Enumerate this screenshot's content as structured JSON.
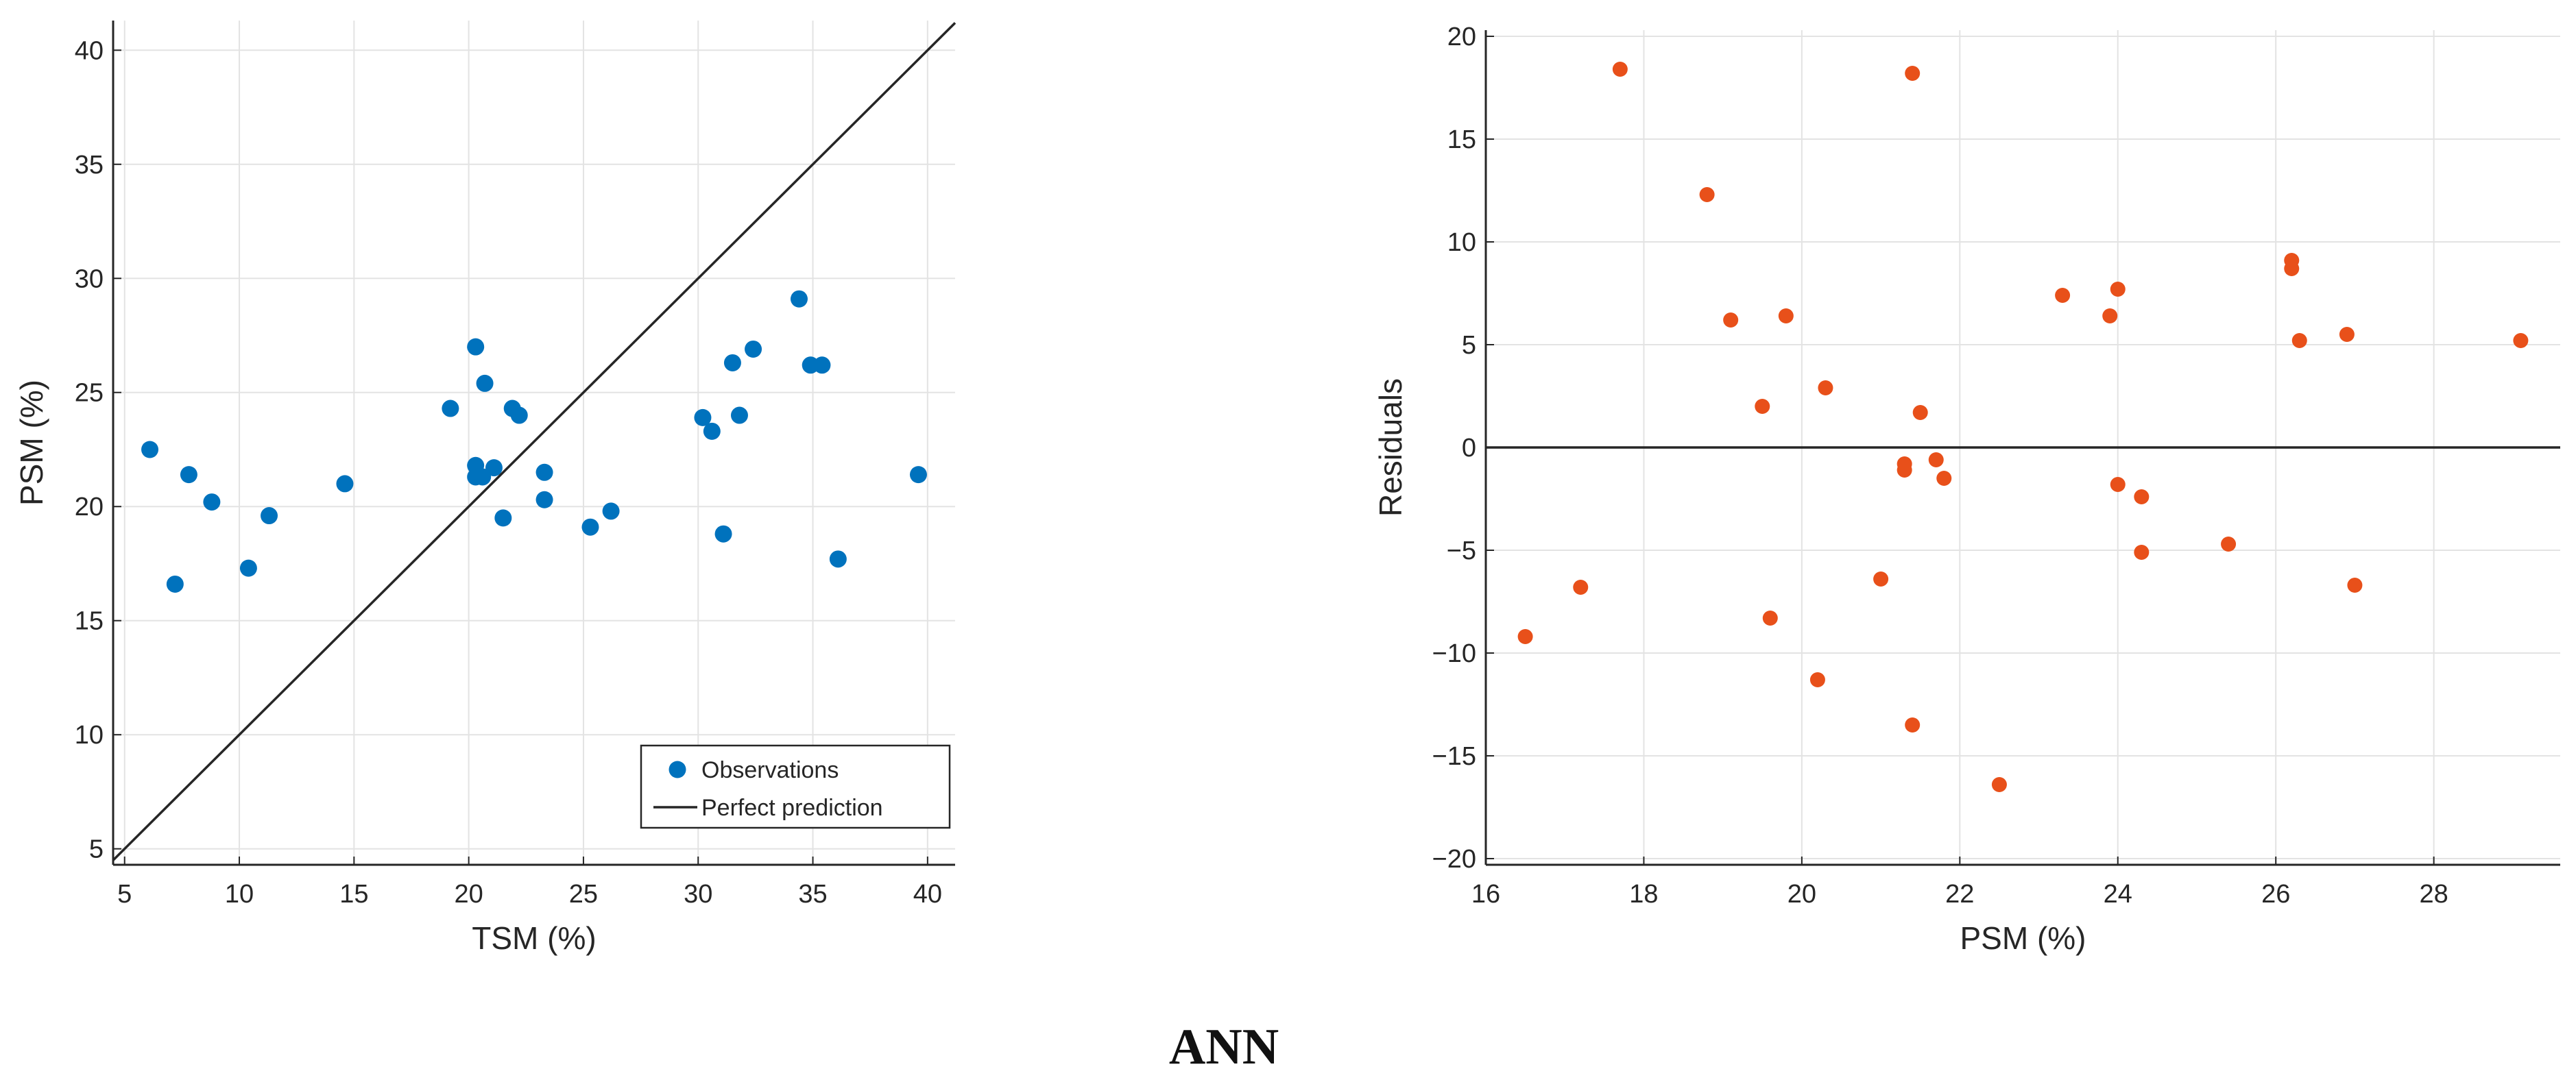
{
  "caption": "ANN",
  "colors": {
    "observations": "#0072BD",
    "residuals": "#E8501A",
    "line": "#262626",
    "grid": "#e3e3e3",
    "axis": "#262626"
  },
  "chart_data": [
    {
      "type": "scatter",
      "xlabel": "TSM (%)",
      "ylabel": "PSM (%)",
      "xlim": [
        4.5,
        41.2
      ],
      "ylim": [
        4.3,
        41.3
      ],
      "xticks": [
        5,
        10,
        15,
        20,
        25,
        30,
        35,
        40
      ],
      "yticks": [
        5,
        10,
        15,
        20,
        25,
        30,
        35,
        40
      ],
      "grid": true,
      "legend_position": "bottom-right",
      "legend": [
        "Observations",
        "Perfect prediction"
      ],
      "series": [
        {
          "name": "Observations",
          "kind": "points",
          "points": [
            [
              6.1,
              22.5
            ],
            [
              7.2,
              16.6
            ],
            [
              7.8,
              21.4
            ],
            [
              8.8,
              20.2
            ],
            [
              10.4,
              17.3
            ],
            [
              11.3,
              19.6
            ],
            [
              14.6,
              21.0
            ],
            [
              19.2,
              24.3
            ],
            [
              20.3,
              27.0
            ],
            [
              20.3,
              21.8
            ],
            [
              20.3,
              21.3
            ],
            [
              20.6,
              21.3
            ],
            [
              20.7,
              25.4
            ],
            [
              21.1,
              21.7
            ],
            [
              21.5,
              19.5
            ],
            [
              21.9,
              24.3
            ],
            [
              22.2,
              24.0
            ],
            [
              23.3,
              21.5
            ],
            [
              23.3,
              20.3
            ],
            [
              25.3,
              19.1
            ],
            [
              26.2,
              19.8
            ],
            [
              30.2,
              23.9
            ],
            [
              30.6,
              23.3
            ],
            [
              31.1,
              18.8
            ],
            [
              31.5,
              26.3
            ],
            [
              31.8,
              24.0
            ],
            [
              32.4,
              26.9
            ],
            [
              34.4,
              29.1
            ],
            [
              34.9,
              26.2
            ],
            [
              35.4,
              26.2
            ],
            [
              36.1,
              17.7
            ],
            [
              39.6,
              21.4
            ]
          ]
        },
        {
          "name": "Perfect prediction",
          "kind": "line",
          "points": [
            [
              4.5,
              4.5
            ],
            [
              41.2,
              41.2
            ]
          ]
        }
      ]
    },
    {
      "type": "scatter",
      "xlabel": "PSM (%)",
      "ylabel": "Residuals",
      "xlim": [
        16.0,
        29.6
      ],
      "ylim": [
        -20.3,
        20.3
      ],
      "xticks": [
        16,
        18,
        20,
        22,
        24,
        26,
        28
      ],
      "yticks": [
        -20,
        -15,
        -10,
        -5,
        0,
        5,
        10,
        15,
        20
      ],
      "grid": true,
      "reference_line": 0,
      "series": [
        {
          "name": "Residuals",
          "kind": "points",
          "points": [
            [
              16.5,
              -9.2
            ],
            [
              17.2,
              -6.8
            ],
            [
              17.7,
              18.4
            ],
            [
              18.8,
              12.3
            ],
            [
              19.1,
              6.2
            ],
            [
              19.5,
              2.0
            ],
            [
              19.6,
              -8.3
            ],
            [
              19.8,
              6.4
            ],
            [
              20.2,
              -11.3
            ],
            [
              20.3,
              2.9
            ],
            [
              21.0,
              -6.4
            ],
            [
              21.3,
              -0.8
            ],
            [
              21.3,
              -1.1
            ],
            [
              21.4,
              18.2
            ],
            [
              21.4,
              -13.5
            ],
            [
              21.5,
              1.7
            ],
            [
              21.7,
              -0.6
            ],
            [
              21.8,
              -1.5
            ],
            [
              22.5,
              -16.4
            ],
            [
              23.3,
              7.4
            ],
            [
              23.9,
              6.4
            ],
            [
              24.0,
              -1.8
            ],
            [
              24.0,
              7.7
            ],
            [
              24.3,
              -2.4
            ],
            [
              24.3,
              -5.1
            ],
            [
              25.4,
              -4.7
            ],
            [
              26.2,
              9.1
            ],
            [
              26.2,
              8.7
            ],
            [
              26.3,
              5.2
            ],
            [
              26.9,
              5.5
            ],
            [
              27.0,
              -6.7
            ],
            [
              29.1,
              5.2
            ]
          ]
        }
      ]
    }
  ]
}
